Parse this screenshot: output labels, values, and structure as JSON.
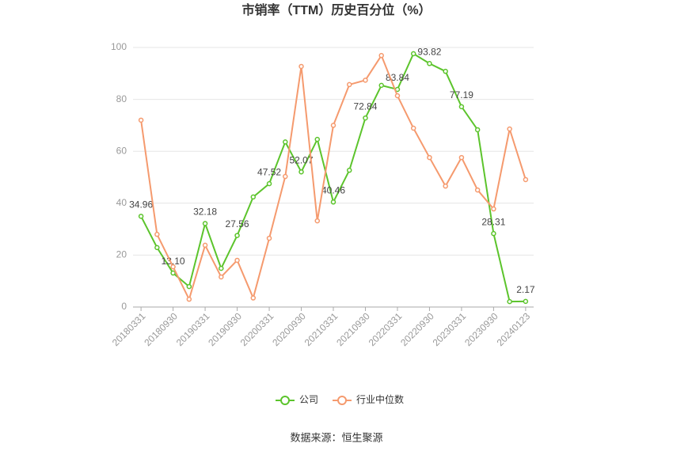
{
  "chart_data": {
    "type": "line",
    "title": "市销率（TTM）历史百分位（%）",
    "source": "数据来源：恒生聚源",
    "categories": [
      "20180331",
      null,
      "20180930",
      null,
      "20190331",
      null,
      "20190930",
      null,
      "20200331",
      null,
      "20200930",
      null,
      "20210331",
      null,
      "20210930",
      null,
      "20220331",
      null,
      "20220930",
      null,
      "20230331",
      null,
      "20230930",
      null,
      "20240123"
    ],
    "series": [
      {
        "name": "公司",
        "color": "#5cc42c",
        "values": [
          34.96,
          22.9,
          13.1,
          7.9,
          32.18,
          14.9,
          27.56,
          42.4,
          47.52,
          63.6,
          52.07,
          64.6,
          40.46,
          52.7,
          72.84,
          85.4,
          83.84,
          97.6,
          93.82,
          90.8,
          77.19,
          68.3,
          28.31,
          2.1,
          2.17
        ],
        "value_labels": [
          "34.96",
          null,
          "13.10",
          null,
          "32.18",
          null,
          "27.56",
          null,
          "47.52",
          null,
          "52.07",
          null,
          "40.46",
          null,
          "72.84",
          null,
          "83.84",
          null,
          "93.82",
          null,
          "77.19",
          null,
          "28.31",
          null,
          "2.17"
        ]
      },
      {
        "name": "行业中位数",
        "color": "#f59a6e",
        "values": [
          72,
          28,
          15.5,
          3,
          23.8,
          11.6,
          18,
          3.5,
          26.5,
          50.3,
          92.7,
          33.2,
          70,
          85.7,
          87.4,
          96.9,
          81.4,
          68.9,
          57.6,
          46.6,
          57.6,
          45.1,
          37.8,
          68.6,
          49.1
        ]
      }
    ],
    "ylim": [
      0,
      100
    ],
    "yticks": [
      0,
      20,
      40,
      60,
      80,
      100
    ],
    "grid": true
  }
}
